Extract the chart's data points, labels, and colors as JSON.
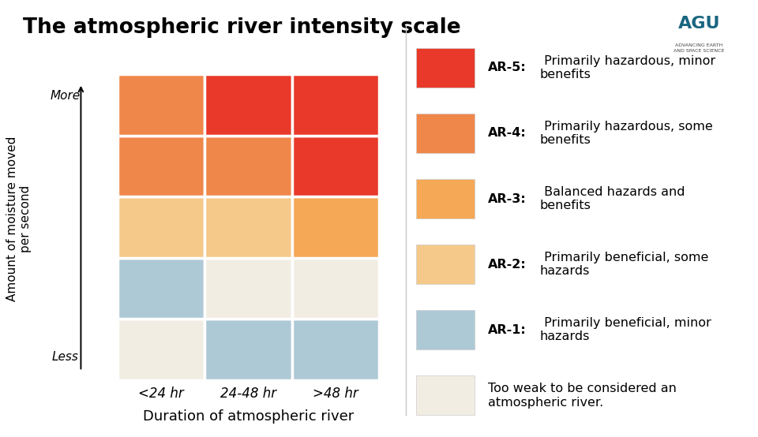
{
  "title": "The atmospheric river intensity scale",
  "title_fontsize": 19,
  "background_color": "#ffffff",
  "col_labels": [
    "<24 hr",
    "24-48 hr",
    ">48 hr"
  ],
  "xlabel": "Duration of atmospheric river",
  "ylabel_line1": "Amount of moisture moved",
  "ylabel_line2": "per second",
  "y_label_more": "More",
  "y_label_less": "Less",
  "cell_colors_matrix": [
    [
      "#f2ede3",
      "#aec9d6",
      "#aec9d6"
    ],
    [
      "#f2ede3",
      "#aec9d6",
      "#aec9d6"
    ],
    [
      "#f5c98a",
      "#f5c98a",
      "#f5a855"
    ],
    [
      "#f0874a",
      "#f0874a",
      "#e8392a"
    ],
    [
      "#e8392a",
      "#e8392a",
      "#e8392a"
    ]
  ],
  "legend_items": [
    {
      "color": "#e8392a",
      "label_bold": "AR-5:",
      "label_rest": " Primarily hazardous, minor\nbenefits"
    },
    {
      "color": "#f0874a",
      "label_bold": "AR-4:",
      "label_rest": " Primarily hazardous, some\nbenefits"
    },
    {
      "color": "#f5a855",
      "label_bold": "AR-3:",
      "label_rest": " Balanced hazards and\nbenefits"
    },
    {
      "color": "#f5c98a",
      "label_bold": "AR-2:",
      "label_rest": " Primarily beneficial, some\nhazards"
    },
    {
      "color": "#aec9d6",
      "label_bold": "AR-1:",
      "label_rest": " Primarily beneficial, minor\nhazards"
    },
    {
      "color": "#f2ede3",
      "label_bold": "",
      "label_rest": "Too weak to be considered an\natmospheric river."
    }
  ]
}
